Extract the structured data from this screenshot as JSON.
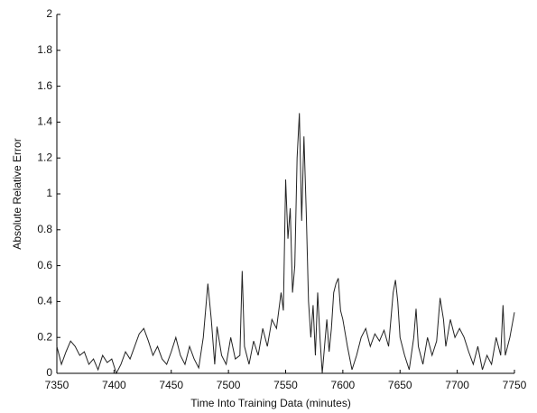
{
  "chart_data": {
    "type": "line",
    "x_label": "Time Into Training Data (minutes)",
    "y_label": "Absolute Relative Error",
    "color": "#222222",
    "xlim": [
      7350,
      7750
    ],
    "xticks": [
      7350,
      7400,
      7450,
      7500,
      7550,
      7600,
      7650,
      7700,
      7750
    ],
    "ylim": [
      0,
      2
    ],
    "yticks": [
      0,
      0.2,
      0.4,
      0.6,
      0.8,
      1,
      1.2,
      1.4,
      1.6,
      1.8,
      2
    ],
    "x": [
      7350,
      7354,
      7358,
      7362,
      7366,
      7370,
      7374,
      7378,
      7382,
      7386,
      7390,
      7394,
      7398,
      7402,
      7406,
      7410,
      7414,
      7418,
      7422,
      7426,
      7430,
      7434,
      7438,
      7442,
      7446,
      7450,
      7454,
      7458,
      7462,
      7466,
      7470,
      7474,
      7478,
      7482,
      7485,
      7488,
      7490,
      7494,
      7498,
      7502,
      7506,
      7510,
      7512,
      7514,
      7518,
      7522,
      7526,
      7530,
      7534,
      7538,
      7542,
      7546,
      7548,
      7550,
      7552,
      7554,
      7556,
      7558,
      7560,
      7562,
      7564,
      7566,
      7568,
      7570,
      7572,
      7574,
      7576,
      7578,
      7580,
      7582,
      7584,
      7586,
      7588,
      7590,
      7592,
      7594,
      7596,
      7598,
      7600,
      7604,
      7608,
      7612,
      7616,
      7620,
      7624,
      7628,
      7632,
      7636,
      7640,
      7644,
      7646,
      7648,
      7650,
      7654,
      7658,
      7662,
      7664,
      7666,
      7670,
      7674,
      7678,
      7682,
      7685,
      7688,
      7690,
      7694,
      7698,
      7702,
      7706,
      7710,
      7714,
      7718,
      7722,
      7726,
      7730,
      7734,
      7738,
      7740,
      7742,
      7746,
      7750
    ],
    "values": [
      0.15,
      0.05,
      0.12,
      0.18,
      0.15,
      0.1,
      0.12,
      0.05,
      0.08,
      0.02,
      0.1,
      0.06,
      0.08,
      0.0,
      0.05,
      0.12,
      0.08,
      0.15,
      0.22,
      0.25,
      0.18,
      0.1,
      0.15,
      0.08,
      0.05,
      0.12,
      0.2,
      0.1,
      0.05,
      0.15,
      0.08,
      0.03,
      0.2,
      0.5,
      0.3,
      0.05,
      0.26,
      0.1,
      0.05,
      0.2,
      0.08,
      0.1,
      0.57,
      0.15,
      0.05,
      0.18,
      0.1,
      0.25,
      0.15,
      0.3,
      0.25,
      0.45,
      0.35,
      1.08,
      0.75,
      0.92,
      0.45,
      0.6,
      1.2,
      1.45,
      0.85,
      1.32,
      0.9,
      0.4,
      0.2,
      0.38,
      0.1,
      0.45,
      0.2,
      0.0,
      0.15,
      0.3,
      0.12,
      0.25,
      0.45,
      0.5,
      0.53,
      0.35,
      0.3,
      0.15,
      0.02,
      0.1,
      0.2,
      0.25,
      0.15,
      0.22,
      0.18,
      0.24,
      0.15,
      0.45,
      0.52,
      0.4,
      0.2,
      0.1,
      0.02,
      0.2,
      0.36,
      0.15,
      0.05,
      0.2,
      0.1,
      0.18,
      0.42,
      0.3,
      0.15,
      0.3,
      0.2,
      0.25,
      0.2,
      0.12,
      0.05,
      0.15,
      0.02,
      0.1,
      0.05,
      0.2,
      0.1,
      0.38,
      0.1,
      0.2,
      0.34
    ]
  }
}
